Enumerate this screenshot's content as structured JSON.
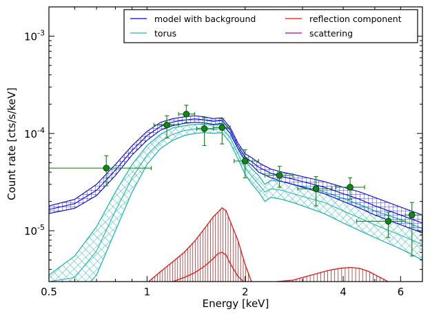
{
  "chart_data": {
    "type": "line",
    "xlabel": "Energy [keV]",
    "ylabel": "Count rate [cts/s/keV]",
    "x_scale": "log",
    "y_scale": "log",
    "xlim": [
      0.5,
      7.0
    ],
    "ylim": [
      3e-06,
      0.002
    ],
    "x_ticks": [
      {
        "value": 0.5,
        "label": "0.5"
      },
      {
        "value": 1,
        "label": "1"
      },
      {
        "value": 2,
        "label": "2"
      },
      {
        "value": 4,
        "label": "4"
      },
      {
        "value": 6,
        "label": "6"
      }
    ],
    "y_ticks": [
      {
        "value": 1e-05,
        "base": "10",
        "exp": "-5"
      },
      {
        "value": 0.0001,
        "base": "10",
        "exp": "-4"
      },
      {
        "value": 0.001,
        "base": "10",
        "exp": "-3"
      }
    ],
    "grid": false,
    "legend_position": "top-right",
    "legend": [
      {
        "label": "model with background",
        "color": "#0000dd"
      },
      {
        "label": "torus",
        "color": "#20b8b8"
      },
      {
        "label": "reflection component",
        "color": "#ee1111"
      },
      {
        "label": "scattering",
        "color": "#bb00bb"
      }
    ],
    "series": [
      {
        "name": "model with background",
        "color": "#0000dd",
        "x": [
          0.5,
          0.6,
          0.7,
          0.8,
          0.9,
          1.0,
          1.1,
          1.2,
          1.3,
          1.4,
          1.5,
          1.6,
          1.7,
          1.8,
          1.9,
          2.0,
          2.1,
          2.2,
          2.4,
          2.6,
          2.8,
          3.0,
          3.5,
          4.0,
          4.5,
          5.0,
          6.0,
          7.0
        ],
        "hi": [
          1.8e-05,
          2.1e-05,
          3e-05,
          4.8e-05,
          7.5e-05,
          0.000105,
          0.00013,
          0.000142,
          0.000148,
          0.000152,
          0.000148,
          0.000142,
          0.000145,
          0.000115,
          8e-05,
          6.2e-05,
          5.6e-05,
          5e-05,
          4.3e-05,
          4e-05,
          3.8e-05,
          3.6e-05,
          3.2e-05,
          2.8e-05,
          2.5e-05,
          2.2e-05,
          1.75e-05,
          1.45e-05
        ],
        "lo": [
          1.5e-05,
          1.7e-05,
          2.3e-05,
          3.7e-05,
          6e-05,
          8.5e-05,
          0.000108,
          0.00012,
          0.000127,
          0.00013,
          0.000128,
          0.000124,
          0.000127,
          0.0001,
          7e-05,
          5.3e-05,
          4.7e-05,
          4e-05,
          3.5e-05,
          3.2e-05,
          3e-05,
          2.8e-05,
          2.4e-05,
          2e-05,
          1.7e-05,
          1.45e-05,
          1.15e-05,
          9.5e-06
        ],
        "y": [
          1.65e-05,
          1.9e-05,
          2.6e-05,
          4.2e-05,
          6.7e-05,
          9.5e-05,
          0.000118,
          0.000131,
          0.000137,
          0.000141,
          0.000138,
          0.000133,
          0.000136,
          0.000108,
          7.5e-05,
          5.7e-05,
          5.1e-05,
          4.5e-05,
          3.9e-05,
          3.6e-05,
          3.4e-05,
          3.2e-05,
          2.8e-05,
          2.4e-05,
          2.1e-05,
          1.8e-05,
          1.45e-05,
          1.2e-05
        ]
      },
      {
        "name": "torus",
        "color": "#20b8b8",
        "x": [
          0.5,
          0.6,
          0.7,
          0.8,
          0.9,
          1.0,
          1.1,
          1.2,
          1.3,
          1.4,
          1.5,
          1.6,
          1.7,
          1.8,
          1.9,
          2.0,
          2.1,
          2.2,
          2.3,
          2.4,
          2.6,
          2.8,
          3.0,
          3.5,
          4.0,
          4.5,
          5.0,
          6.0,
          7.0
        ],
        "hi": [
          3.5e-06,
          5.5e-06,
          1.1e-05,
          2.5e-05,
          4.8e-05,
          7.5e-05,
          9.8e-05,
          0.000114,
          0.00012,
          0.000124,
          0.000124,
          0.000122,
          0.000124,
          0.0001,
          7e-05,
          5.2e-05,
          4.3e-05,
          3.7e-05,
          3e-05,
          3.3e-05,
          3.2e-05,
          3e-05,
          2.85e-05,
          2.5e-05,
          2.15e-05,
          1.85e-05,
          1.6e-05,
          1.3e-05,
          1.05e-05
        ],
        "lo": [
          2.5e-06,
          2e-06,
          3.5e-06,
          1e-05,
          2.5e-05,
          4.8e-05,
          7e-05,
          8.5e-05,
          9.5e-05,
          0.0001,
          0.000102,
          0.0001,
          0.000102,
          8e-05,
          5.5e-05,
          3.8e-05,
          3e-05,
          2.5e-05,
          2e-05,
          2.2e-05,
          2.1e-05,
          1.95e-05,
          1.8e-05,
          1.5e-05,
          1.2e-05,
          1e-05,
          8.5e-06,
          6.5e-06,
          5e-06
        ],
        "y": [
          3e-06,
          3.3e-06,
          6.2e-06,
          1.6e-05,
          3.5e-05,
          6e-05,
          8.3e-05,
          9.8e-05,
          0.000107,
          0.000111,
          0.000112,
          0.00011,
          0.000112,
          9e-05,
          6.2e-05,
          4.4e-05,
          3.6e-05,
          3e-05,
          2.5e-05,
          2.7e-05,
          2.6e-05,
          2.4e-05,
          2.25e-05,
          1.95e-05,
          1.6e-05,
          1.35e-05,
          1.15e-05,
          9e-06,
          7.2e-06
        ]
      },
      {
        "name": "reflection component",
        "color": "#ee1111",
        "x": [
          1.0,
          1.1,
          1.2,
          1.3,
          1.4,
          1.5,
          1.6,
          1.65,
          1.7,
          1.75,
          1.8,
          1.9,
          2.0,
          2.1
        ],
        "hi": [
          2.9e-06,
          3.8e-06,
          4.8e-06,
          6e-06,
          7.8e-06,
          1.05e-05,
          1.4e-05,
          1.55e-05,
          1.72e-05,
          1.6e-05,
          1.25e-05,
          8e-06,
          4.5e-06,
          2.9e-06
        ],
        "lo": [
          2.9e-06,
          2.9e-06,
          3e-06,
          3.3e-06,
          3.7e-06,
          4.3e-06,
          5.2e-06,
          5.8e-06,
          6e-06,
          5.6e-06,
          4.6e-06,
          3.4e-06,
          2.9e-06,
          2.9e-06
        ],
        "x2": [
          2.5,
          2.8,
          3.0,
          3.3,
          3.6,
          3.9,
          4.2,
          4.5,
          4.8,
          5.2,
          5.6
        ],
        "hi2": [
          3e-06,
          3.1e-06,
          3.3e-06,
          3.6e-06,
          3.9e-06,
          4.1e-06,
          4.2e-06,
          4.1e-06,
          3.8e-06,
          3.3e-06,
          2.9e-06
        ]
      },
      {
        "name": "data",
        "color": "#1a8a1a",
        "points": [
          {
            "x": 0.75,
            "y": 4.4e-05,
            "xerr": [
              0.5,
              1.03
            ],
            "yerr": [
              2.9e-05,
              5.9e-05
            ]
          },
          {
            "x": 1.15,
            "y": 0.000122,
            "xerr": [
              1.05,
              1.25
            ],
            "yerr": [
              9e-05,
              0.000152
            ]
          },
          {
            "x": 1.32,
            "y": 0.000158,
            "xerr": [
              1.25,
              1.4
            ],
            "yerr": [
              0.00013,
              0.000195
            ]
          },
          {
            "x": 1.5,
            "y": 0.000112,
            "xerr": [
              1.42,
              1.6
            ],
            "yerr": [
              7.5e-05,
              0.000145
            ]
          },
          {
            "x": 1.7,
            "y": 0.000115,
            "xerr": [
              1.6,
              1.8
            ],
            "yerr": [
              7.8e-05,
              0.000142
            ]
          },
          {
            "x": 2.0,
            "y": 5.2e-05,
            "xerr": [
              1.85,
              2.2
            ],
            "yerr": [
              3.5e-05,
              6.8e-05
            ]
          },
          {
            "x": 2.55,
            "y": 3.7e-05,
            "xerr": [
              2.3,
              2.8
            ],
            "yerr": [
              2.8e-05,
              4.6e-05
            ]
          },
          {
            "x": 3.3,
            "y": 2.7e-05,
            "xerr": [
              2.9,
              3.7
            ],
            "yerr": [
              1.8e-05,
              3.6e-05
            ]
          },
          {
            "x": 4.2,
            "y": 2.8e-05,
            "xerr": [
              3.8,
              4.65
            ],
            "yerr": [
              2.1e-05,
              3.5e-05
            ]
          },
          {
            "x": 5.5,
            "y": 1.25e-05,
            "xerr": [
              4.4,
              6.2
            ],
            "yerr": [
              8.5e-06,
              1.55e-05
            ]
          },
          {
            "x": 6.5,
            "y": 1.45e-05,
            "xerr": [
              6.2,
              7.0
            ],
            "yerr": [
              5.5e-06,
              1.95e-05
            ]
          }
        ]
      }
    ]
  }
}
